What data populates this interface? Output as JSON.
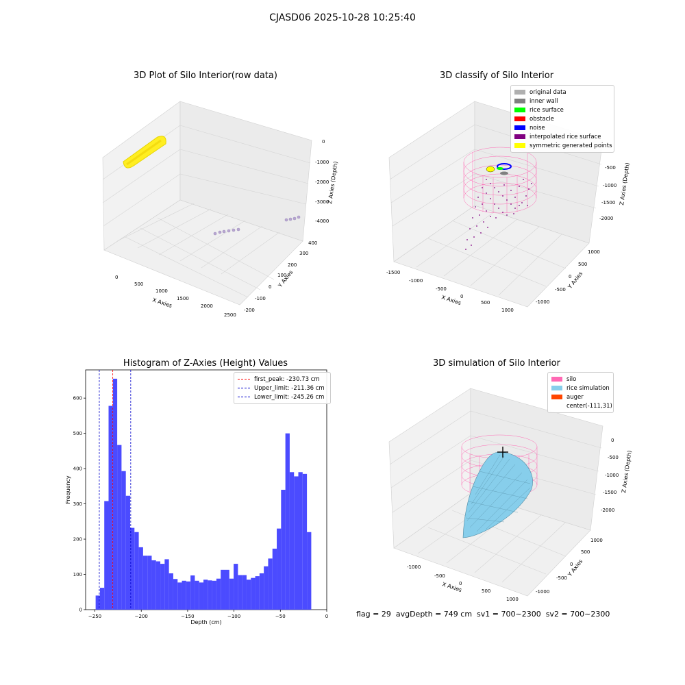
{
  "figure": {
    "suptitle": "CJASD06 2025-10-28 10:25:40"
  },
  "footer": {
    "text": "flag = 29  avgDepth = 749 cm  sv1 = 700~2300  sv2 = 700~2300"
  },
  "colors": {
    "histogram": "#4b4bff",
    "first_peak": "#ff0000",
    "limits": "#0000cc",
    "silo": "#ff69b4",
    "rice": "#87ceeb",
    "auger": "#ff4500",
    "interpolated": "#800080",
    "raw": "#ffee22"
  },
  "chart_data": [
    {
      "id": "raw3d",
      "type": "scatter",
      "title": "3D Plot of Silo Interior(row data)",
      "xlabel": "X Axies",
      "ylabel": "Y Axies",
      "zlabel": "Z Axies (Depth)",
      "xticks": [
        "0",
        "500",
        "1000",
        "1500",
        "2000",
        "2500"
      ],
      "yticks": [
        "-200",
        "-100",
        "0",
        "100",
        "200",
        "300",
        "400"
      ],
      "zticks": [
        "0",
        "-1000",
        "-2000",
        "-3000",
        "-4000"
      ]
    },
    {
      "id": "classify3d",
      "type": "scatter",
      "title": "3D classify of Silo Interior",
      "xlabel": "X Axies",
      "ylabel": "Y Axies",
      "zlabel": "Z Axies (Depth)",
      "xticks": [
        "-1500",
        "-1000",
        "-500",
        "0",
        "500",
        "1000"
      ],
      "yticks": [
        "-1000",
        "-500",
        "0",
        "500",
        "1000"
      ],
      "zticks": [
        "-500",
        "-1000",
        "-1500",
        "-2000"
      ],
      "legend": [
        {
          "label": "original data",
          "color": "#b0b0b0"
        },
        {
          "label": "inner wall",
          "color": "#808080"
        },
        {
          "label": "rice surface",
          "color": "#00ff00"
        },
        {
          "label": "obstacle",
          "color": "#ff0000"
        },
        {
          "label": "noise",
          "color": "#0000ff"
        },
        {
          "label": "interpolated rice surface",
          "color": "#800080"
        },
        {
          "label": "symmetric generated points",
          "color": "#ffff00"
        }
      ]
    },
    {
      "id": "hist",
      "type": "bar",
      "title": "Histogram of Z-Axies (Height) Values",
      "xlabel": "Depth (cm)",
      "ylabel": "Frequency",
      "xlim": [
        -260,
        0
      ],
      "ylim": [
        0,
        680
      ],
      "xticks": [
        -250,
        -200,
        -150,
        -100,
        -50,
        0
      ],
      "yticks": [
        0,
        100,
        200,
        300,
        400,
        500,
        600
      ],
      "bin_width": 4.65,
      "bin_start": -249.2,
      "values": [
        40,
        62,
        308,
        578,
        655,
        467,
        393,
        323,
        232,
        220,
        177,
        153,
        153,
        140,
        137,
        130,
        143,
        103,
        87,
        77,
        82,
        80,
        97,
        82,
        77,
        85,
        83,
        82,
        88,
        113,
        113,
        88,
        130,
        98,
        98,
        85,
        90,
        95,
        103,
        123,
        145,
        173,
        230,
        340,
        500,
        390,
        378,
        390,
        385,
        220
      ],
      "lines": [
        {
          "label": "first_peak: -230.73 cm",
          "x": -230.73,
          "color": "#ff0000"
        },
        {
          "label": "Upper_limit: -211.36 cm",
          "x": -211.36,
          "color": "#0000cc"
        },
        {
          "label": "Lower_limit: -245.26 cm",
          "x": -245.26,
          "color": "#0000cc"
        }
      ]
    },
    {
      "id": "sim3d",
      "type": "scatter",
      "title": "3D simulation of Silo Interior",
      "xlabel": "X Axies",
      "ylabel": "Y Axies",
      "zlabel": "Z Axies (Depth)",
      "xticks": [
        "-1000",
        "-500",
        "0",
        "500",
        "1000"
      ],
      "yticks": [
        "-1000",
        "-500",
        "0",
        "500",
        "1000"
      ],
      "zticks": [
        "0",
        "-500",
        "-1000",
        "-1500",
        "-2000"
      ],
      "legend": [
        {
          "label": "silo",
          "color": "#ff69b4"
        },
        {
          "label": "rice simulation",
          "color": "#87ceeb"
        },
        {
          "label": "auger",
          "color": "#ff4500"
        },
        {
          "label": "center(-111,31)",
          "color": ""
        }
      ]
    }
  ]
}
